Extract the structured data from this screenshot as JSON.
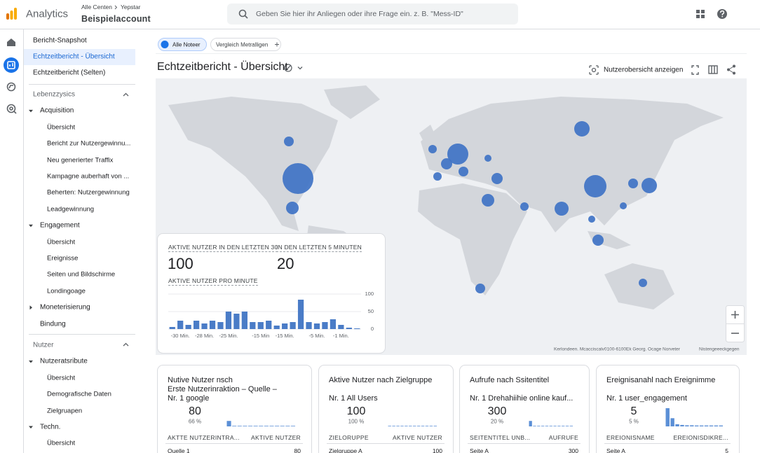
{
  "header": {
    "app_name": "Analytics",
    "breadcrumb": [
      "Alle Centen",
      "Yepstar"
    ],
    "account": "Beispielaccount",
    "search_placeholder": "Geben Sie hier ihr Anliegen oder ihre Frage ein. z. B. \"Mess-ID\""
  },
  "sidebar": {
    "top": [
      "Bericht-Snapshot",
      "Echtzeitbericht - Übersicht",
      "Echtzeitbericht (Selten)"
    ],
    "selected": 1,
    "sections": [
      {
        "title": "Lebenzzysics",
        "groups": [
          {
            "label": "Acquisition",
            "expanded": true,
            "items": [
              "Übersicht",
              "Bericht zur Nutzergewinnu...",
              "Neu generierter Traffix",
              "Kampagne auberhaft von ...",
              "Beherten: Nutzergewinnung",
              "Leadgewinnung"
            ]
          },
          {
            "label": "Engagement",
            "expanded": true,
            "items": [
              "Übersicht",
              "Ereignisse",
              "Seiten und Bildschirme",
              "Londingoage"
            ]
          },
          {
            "label": "Moneterisierung",
            "expanded": false,
            "items": []
          },
          {
            "label": "Bindung",
            "items": []
          }
        ]
      },
      {
        "title": "Nutzer",
        "groups": [
          {
            "label": "Nutzeratsribute",
            "expanded": true,
            "items": [
              "Übersicht",
              "Demografische Daten",
              "Zielgruapen"
            ]
          },
          {
            "label": "Techn.",
            "expanded": true,
            "items": [
              "Übersicht"
            ]
          }
        ]
      }
    ]
  },
  "toolbar": {
    "chips": [
      "Alle Noteer",
      "Vergleich Metralligen"
    ],
    "title": "Echtzeitbericht - Übersicht",
    "action": "Nutzerobersicht anzeigen"
  },
  "map": {
    "attribution": "Kerlondeen. Mcacciscalv0100-6100Ek Georg. Ocage Norveter",
    "terms": "Nistengeeeckgegen"
  },
  "realtime": {
    "label_30": "AKTIVE NUTZER IN DEN LETZTEN 30",
    "value_30": 100,
    "label_5": "IN DEN LETZTEN 5 MINUTEN",
    "value_5": 20,
    "chart": {
      "type": "bar",
      "title": "AKTIVE NUTZER PRO MINUTE",
      "categories": [
        null,
        "-30 Min.",
        null,
        null,
        "-28 Min.",
        null,
        null,
        "-25 Min.",
        null,
        null,
        null,
        "-15 Min",
        null,
        null,
        "-15 Min.",
        null,
        null,
        null,
        "-5 Min.",
        null,
        null,
        "-1 Min.",
        null,
        null
      ],
      "values": [
        6,
        24,
        12,
        24,
        16,
        24,
        20,
        50,
        44,
        50,
        20,
        20,
        24,
        10,
        16,
        20,
        84,
        20,
        16,
        20,
        28,
        12,
        4,
        2
      ],
      "color": "#4a7cc7",
      "ylim": [
        0,
        100
      ],
      "yticks": [
        0,
        50,
        100
      ]
    }
  },
  "cards": [
    {
      "title": [
        "Nutive Nutzer nsch",
        "Erste Nutzerinraktion – Quelle –"
      ],
      "top_label": "Nr. 1 google",
      "value": 80,
      "share": "66 %",
      "bars": [
        30,
        3,
        3,
        3,
        3,
        3,
        3,
        3,
        3,
        3,
        3,
        3,
        3
      ],
      "bars_ylim": [
        0,
        100
      ],
      "columns": [
        "AKTTE NUTZERINTRA...",
        "AKTIVE NUTZER"
      ],
      "rows": [
        [
          "Quelle 1",
          80
        ]
      ]
    },
    {
      "title": [
        "Aktive Nutzer  nach Zielgruppe"
      ],
      "top_label": "Nr. 1 All Users",
      "value": 100,
      "share": "100 %",
      "bars": [
        3,
        3,
        3,
        3,
        3,
        3,
        3,
        3,
        3,
        3,
        3,
        3
      ],
      "bars_ylim": [
        0,
        100
      ],
      "columns": [
        "ZIELORUPPE",
        "AKTIVE NUTZER"
      ],
      "rows": [
        [
          "Zielgruppe A",
          100
        ]
      ]
    },
    {
      "title": [
        "Aufrufe nach Ssitentitel"
      ],
      "top_label": "Nr. 1 Drehahiihie online kauf...",
      "value": 300,
      "share": "20 %",
      "bars": [
        30,
        3,
        3,
        3,
        3,
        3,
        3,
        3,
        3,
        3,
        3
      ],
      "bars_ylim": [
        0,
        100
      ],
      "columns": [
        "SEITENTITEL UNB...",
        "AUFRUFE"
      ],
      "rows": [
        [
          "Seite A",
          300
        ]
      ]
    },
    {
      "title": [
        "Ereignisanahl nach Ereignimme"
      ],
      "top_label": "Nr. 1 user_engagement",
      "value": 5,
      "share": "5 %",
      "bars": [
        100,
        45,
        12,
        8,
        6,
        6,
        5,
        5,
        5,
        5,
        5,
        5
      ],
      "bars_ylim": [
        0,
        100
      ],
      "columns": [
        "EREIONISNAME",
        "EREIONISDIKRE..."
      ],
      "rows": [
        [
          "Seite A",
          5
        ]
      ]
    }
  ]
}
